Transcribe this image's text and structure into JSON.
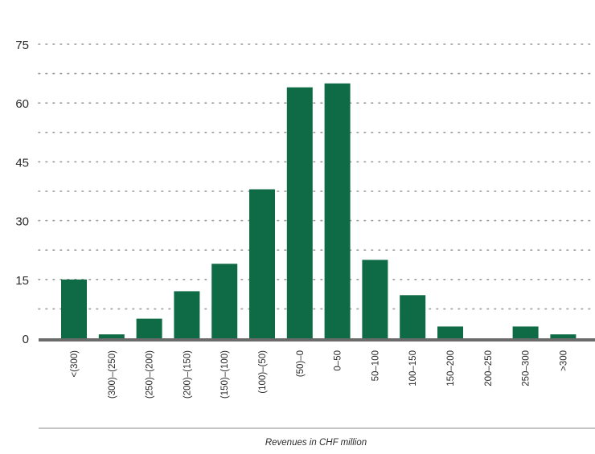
{
  "chart_data": {
    "type": "bar",
    "title": "",
    "xlabel": "Revenues in CHF million",
    "ylabel": "",
    "ylim": [
      0,
      75
    ],
    "yticks": [
      0,
      15,
      30,
      45,
      60,
      75
    ],
    "grid": true,
    "legend": "none",
    "colors": {
      "bar": "#0f6b45",
      "grid": "#9a9a9a",
      "baseline": "#6b6b6b"
    },
    "categories": [
      "<(300)",
      "(300)–(250)",
      "(250)–(200)",
      "(200)–(150)",
      "(150)–(100)",
      "(100)–(50)",
      "(50)–0",
      "0–50",
      "50–100",
      "100–150",
      "150–200",
      "200–250",
      "250–300",
      ">300"
    ],
    "values": [
      15,
      1,
      5,
      12,
      19,
      38,
      64,
      65,
      20,
      11,
      3,
      0,
      3,
      1
    ]
  }
}
